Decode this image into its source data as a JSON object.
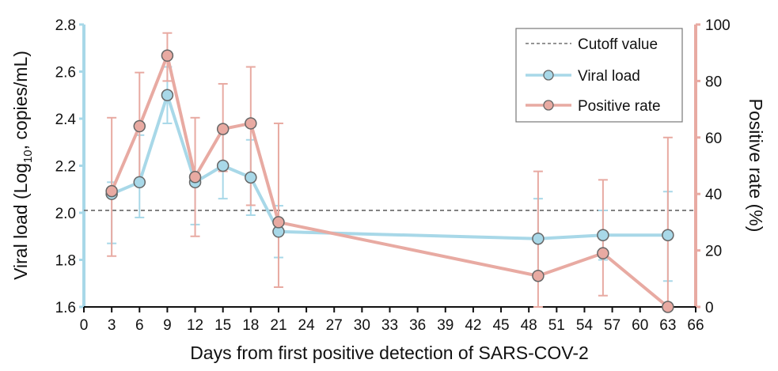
{
  "chart_data": {
    "type": "line",
    "title": "",
    "xlabel": "Days from first positive detection of SARS-COV-2",
    "ylabel_left": "Viral load (Log10, copies/mL)",
    "ylabel_left_parts": {
      "pre": "Viral load (Log",
      "sub": "10",
      "post": ", copies/mL)"
    },
    "ylabel_right": "Positive rate (%)",
    "xlim": [
      0,
      66
    ],
    "x_ticks": [
      0,
      3,
      6,
      9,
      12,
      15,
      18,
      21,
      24,
      27,
      30,
      33,
      36,
      39,
      42,
      45,
      48,
      51,
      54,
      57,
      60,
      63,
      66
    ],
    "ylim_left": [
      1.6,
      2.8
    ],
    "y_ticks_left": [
      "1.6",
      "1.8",
      "2.0",
      "2.2",
      "2.4",
      "2.6",
      "2.8"
    ],
    "ylim_right": [
      0,
      100
    ],
    "y_ticks_right": [
      "0",
      "20",
      "40",
      "60",
      "80",
      "100"
    ],
    "grid": false,
    "legend_position": "top-right",
    "colors": {
      "viral_load": "#a8d8e8",
      "positive_rate": "#e8aaa2",
      "cutoff": "#707070",
      "marker_edge": "#666666"
    },
    "cutoff": {
      "name": "Cutoff value",
      "axis": "left",
      "value": 2.01
    },
    "series": [
      {
        "name": "Viral load",
        "axis": "left",
        "x": [
          3,
          6,
          9,
          12,
          15,
          18,
          21,
          49,
          56,
          63
        ],
        "y": [
          2.08,
          2.13,
          2.5,
          2.13,
          2.2,
          2.15,
          1.92,
          1.89,
          1.905,
          1.905
        ],
        "err_low": [
          1.87,
          1.98,
          2.38,
          1.95,
          2.06,
          1.99,
          1.81,
          1.73,
          1.8,
          1.71
        ],
        "err_high": [
          2.13,
          2.33,
          2.62,
          2.12,
          2.34,
          2.31,
          2.03,
          2.06,
          2.01,
          2.09
        ]
      },
      {
        "name": "Positive rate",
        "axis": "right",
        "x": [
          3,
          6,
          9,
          12,
          15,
          18,
          21,
          49,
          56,
          63
        ],
        "y": [
          41,
          64,
          89,
          46,
          63,
          65,
          30,
          11,
          19,
          0
        ],
        "err_low": [
          18,
          43,
          80,
          25,
          48,
          36,
          7,
          0,
          4,
          0
        ],
        "err_high": [
          67,
          83,
          97,
          67,
          79,
          85,
          65,
          48,
          45,
          60
        ]
      }
    ]
  }
}
